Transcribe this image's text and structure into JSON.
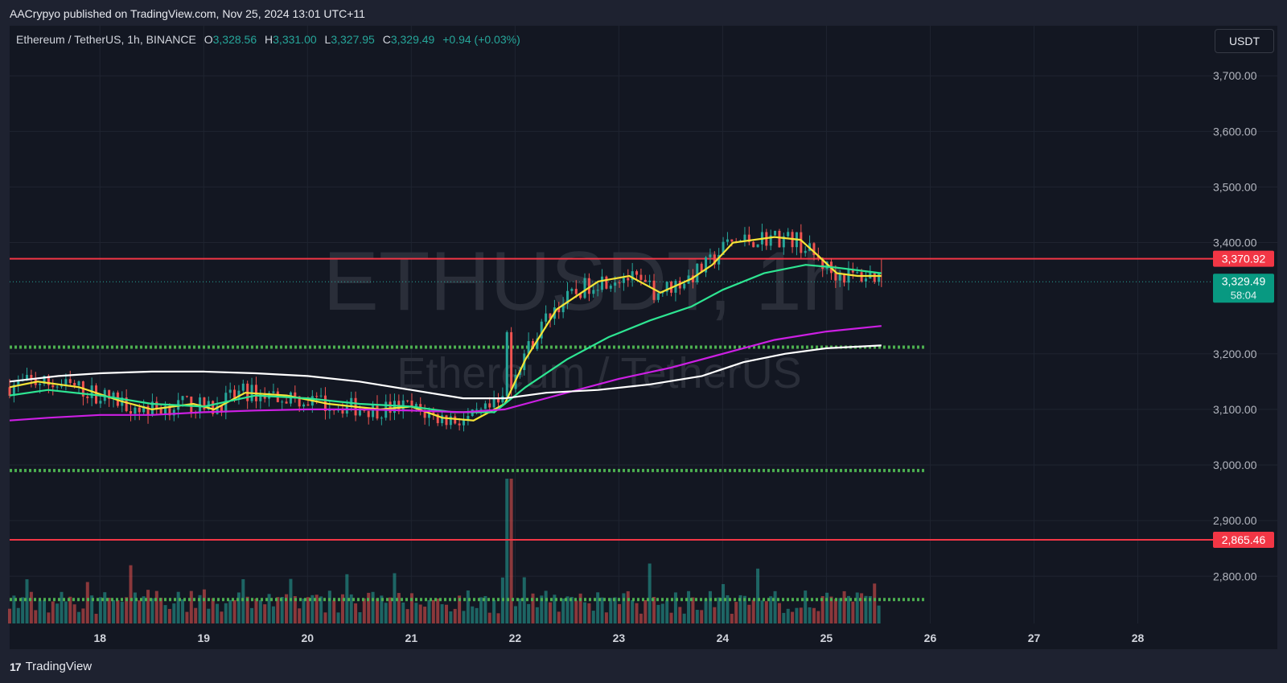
{
  "published": "AACrypyo published on TradingView.com, Nov 25, 2024 13:01 UTC+11",
  "legend": {
    "symbol": "Ethereum / TetherUS, 1h, BINANCE",
    "open_label": "O",
    "open": "3,328.56",
    "high_label": "H",
    "high": "3,331.00",
    "low_label": "L",
    "low": "3,327.95",
    "close_label": "C",
    "close": "3,329.49",
    "change": "+0.94 (+0.03%)"
  },
  "currency_button": "USDT",
  "watermark": {
    "ticker": "ETHUSDT, 1h",
    "name": "Ethereum / TetherUS"
  },
  "brand": "TradingView",
  "colors": {
    "up": "#26a69a",
    "down": "#ef5350",
    "ma_yellow": "#f5e437",
    "ma_green": "#2ee592",
    "ma_purple": "#cc1fe3",
    "ma_white": "#ffffff",
    "hline_red": "#f23645",
    "hline_dotted": "#4caf50"
  },
  "chart_data": {
    "type": "candlestick",
    "title": "Ethereum / TetherUS, 1h, BINANCE",
    "x_tick_labels": [
      "18",
      "19",
      "20",
      "21",
      "22",
      "23",
      "24",
      "25",
      "26",
      "27",
      "28"
    ],
    "y_tick_labels": [
      "3,700.00",
      "3,600.00",
      "3,500.00",
      "3,400.00",
      "3,200.00",
      "3,100.00",
      "3,000.00",
      "2,900.00",
      "2,800.00"
    ],
    "y_ticks": [
      3700,
      3600,
      3500,
      3400,
      3200,
      3100,
      3000,
      2900,
      2800
    ],
    "ylim": [
      2715,
      3790
    ],
    "xlim_days": [
      17.13,
      28.43
    ],
    "grid": true,
    "horizontal_lines": [
      {
        "price": 3370.92,
        "label": "3,370.92",
        "style": "solid",
        "color": "#f23645"
      },
      {
        "price": 2865.46,
        "label": "2,865.46",
        "style": "solid",
        "color": "#f23645"
      },
      {
        "price": 3212,
        "style": "dotted",
        "color": "#4caf50"
      },
      {
        "price": 2990,
        "style": "dotted",
        "color": "#4caf50"
      },
      {
        "price": 2758,
        "style": "dotted",
        "color": "#4caf50"
      }
    ],
    "last_price": {
      "price": 3329.49,
      "label": "3,329.49",
      "countdown": "58:04"
    },
    "moving_averages": [
      {
        "color": "#f5e437",
        "points": [
          [
            17.13,
            3140
          ],
          [
            17.4,
            3150
          ],
          [
            17.8,
            3140
          ],
          [
            18.2,
            3115
          ],
          [
            18.5,
            3100
          ],
          [
            18.9,
            3110
          ],
          [
            19.1,
            3100
          ],
          [
            19.4,
            3130
          ],
          [
            19.8,
            3125
          ],
          [
            20.2,
            3110
          ],
          [
            20.7,
            3100
          ],
          [
            21.0,
            3105
          ],
          [
            21.3,
            3085
          ],
          [
            21.6,
            3080
          ],
          [
            21.9,
            3110
          ],
          [
            22.1,
            3190
          ],
          [
            22.4,
            3280
          ],
          [
            22.8,
            3330
          ],
          [
            23.1,
            3340
          ],
          [
            23.4,
            3310
          ],
          [
            23.7,
            3335
          ],
          [
            23.9,
            3360
          ],
          [
            24.1,
            3400
          ],
          [
            24.5,
            3410
          ],
          [
            24.75,
            3405
          ],
          [
            24.9,
            3380
          ],
          [
            25.1,
            3345
          ],
          [
            25.3,
            3340
          ],
          [
            25.53,
            3340
          ]
        ]
      },
      {
        "color": "#2ee592",
        "points": [
          [
            17.13,
            3125
          ],
          [
            17.5,
            3135
          ],
          [
            18.0,
            3125
          ],
          [
            18.5,
            3110
          ],
          [
            19.0,
            3105
          ],
          [
            19.5,
            3125
          ],
          [
            20.0,
            3120
          ],
          [
            20.5,
            3110
          ],
          [
            21.0,
            3105
          ],
          [
            21.4,
            3095
          ],
          [
            21.8,
            3095
          ],
          [
            22.1,
            3140
          ],
          [
            22.5,
            3190
          ],
          [
            22.9,
            3230
          ],
          [
            23.3,
            3260
          ],
          [
            23.7,
            3285
          ],
          [
            24.0,
            3315
          ],
          [
            24.4,
            3345
          ],
          [
            24.8,
            3360
          ],
          [
            25.1,
            3355
          ],
          [
            25.53,
            3345
          ]
        ]
      },
      {
        "color": "#cc1fe3",
        "points": [
          [
            17.13,
            3080
          ],
          [
            17.5,
            3085
          ],
          [
            18.0,
            3090
          ],
          [
            18.5,
            3090
          ],
          [
            19.0,
            3095
          ],
          [
            19.5,
            3098
          ],
          [
            20.0,
            3100
          ],
          [
            20.5,
            3100
          ],
          [
            21.0,
            3098
          ],
          [
            21.5,
            3095
          ],
          [
            21.9,
            3100
          ],
          [
            22.2,
            3115
          ],
          [
            22.6,
            3135
          ],
          [
            23.0,
            3155
          ],
          [
            23.5,
            3175
          ],
          [
            24.0,
            3200
          ],
          [
            24.5,
            3225
          ],
          [
            25.0,
            3240
          ],
          [
            25.53,
            3250
          ]
        ]
      },
      {
        "color": "#ffffff",
        "points": [
          [
            17.13,
            3150
          ],
          [
            17.6,
            3160
          ],
          [
            18.0,
            3165
          ],
          [
            18.5,
            3168
          ],
          [
            19.0,
            3168
          ],
          [
            19.5,
            3165
          ],
          [
            20.0,
            3160
          ],
          [
            20.5,
            3150
          ],
          [
            21.0,
            3135
          ],
          [
            21.5,
            3120
          ],
          [
            21.9,
            3120
          ],
          [
            22.3,
            3130
          ],
          [
            22.8,
            3135
          ],
          [
            23.3,
            3145
          ],
          [
            23.8,
            3160
          ],
          [
            24.2,
            3185
          ],
          [
            24.6,
            3200
          ],
          [
            25.0,
            3210
          ],
          [
            25.53,
            3215
          ]
        ]
      }
    ]
  }
}
